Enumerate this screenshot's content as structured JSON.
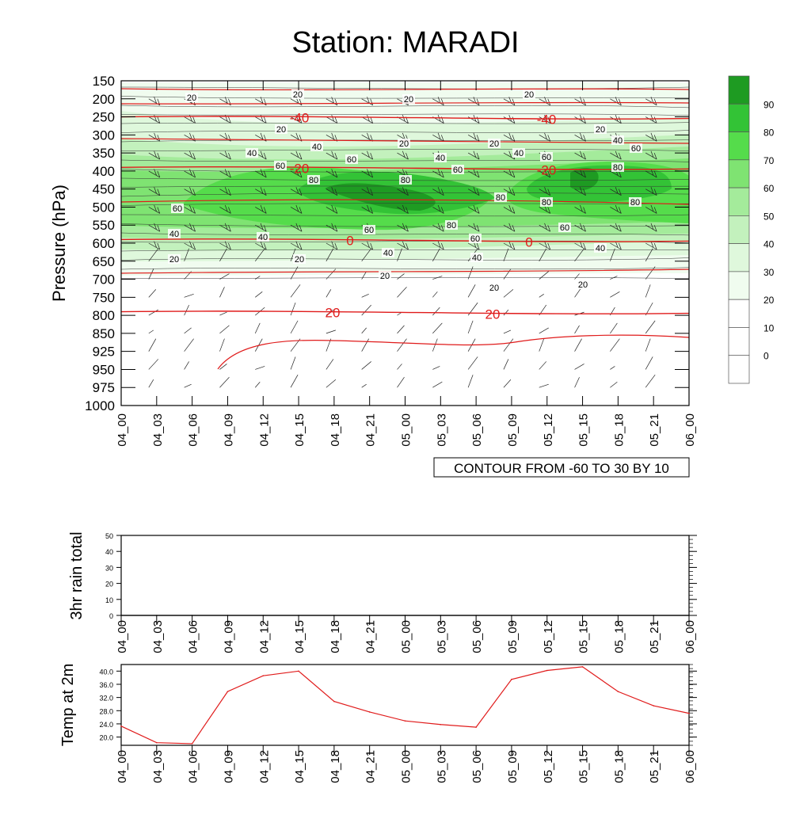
{
  "title": "Station: MARADI",
  "time_ticks": [
    "04_00",
    "04_03",
    "04_06",
    "04_09",
    "04_12",
    "04_15",
    "04_18",
    "04_21",
    "05_00",
    "05_03",
    "05_06",
    "05_09",
    "05_12",
    "05_15",
    "05_18",
    "05_21",
    "06_00"
  ],
  "chart_data": [
    {
      "type": "heatmap",
      "name": "time-pressure cross section",
      "ylabel": "Pressure (hPa)",
      "y_ticks": [
        "150",
        "200",
        "250",
        "300",
        "350",
        "400",
        "450",
        "500",
        "550",
        "600",
        "650",
        "700",
        "750",
        "800",
        "850",
        "925",
        "950",
        "975",
        "1000"
      ],
      "ylim": [
        1000,
        150
      ],
      "contour_note": "CONTOUR FROM -60 TO 30 BY 10",
      "colorbar": {
        "labels": [
          "0",
          "10",
          "20",
          "30",
          "40",
          "50",
          "60",
          "70",
          "80",
          "90"
        ],
        "colors": [
          "#ffffff",
          "#ffffff",
          "#f0fcef",
          "#dff8dc",
          "#c3f1bd",
          "#a4eb9b",
          "#7fe372",
          "#55dc4b",
          "#33c336",
          "#1e9b22"
        ]
      },
      "temperature_contours": [
        {
          "label": "-40",
          "pressure": 250
        },
        {
          "label": "-20",
          "pressure": 390
        },
        {
          "label": "0",
          "pressure": 590
        },
        {
          "label": "20",
          "pressure": 790
        }
      ],
      "humidity_labels": [
        "20",
        "40",
        "60",
        "80"
      ],
      "line_color": "#e01b1b"
    },
    {
      "type": "line",
      "ylabel": "3hr rain total",
      "y_ticks": [
        "0",
        "10",
        "20",
        "30",
        "40",
        "50"
      ],
      "ylim": [
        0,
        50
      ],
      "values": [
        0,
        0,
        0,
        0,
        0,
        0,
        0,
        0,
        0,
        0,
        0,
        0,
        0,
        0,
        0,
        0,
        0
      ]
    },
    {
      "type": "line",
      "ylabel": "Temp at 2m",
      "y_ticks": [
        "20.0",
        "24.0",
        "28.0",
        "32.0",
        "36.0",
        "40.0"
      ],
      "ylim": [
        17.5,
        42
      ],
      "values": [
        23.3,
        18.3,
        18.0,
        33.8,
        38.6,
        40.0,
        30.8,
        27.6,
        24.9,
        23.8,
        23.0,
        37.5,
        40.2,
        41.3,
        33.8,
        29.5,
        27.2
      ],
      "line_color": "#e01b1b"
    }
  ]
}
